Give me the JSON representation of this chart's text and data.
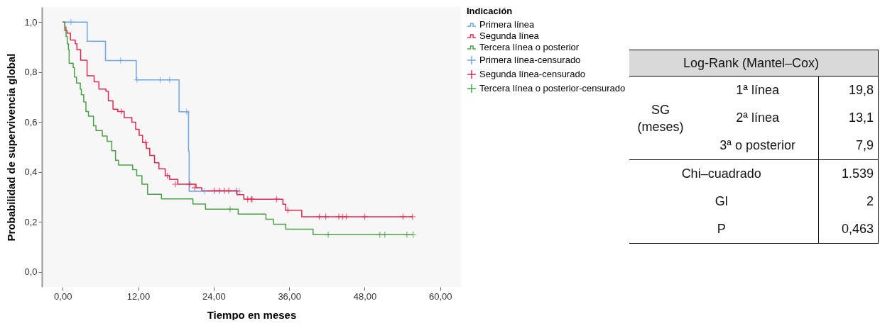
{
  "chart_data": [
    {
      "type": "step",
      "xlabel": "Tiempo en meses",
      "ylabel": "Probabilidad de supervivencia global",
      "legend_title": "Indicación",
      "legend": "top right",
      "xlim": [
        -3.3,
        63.3
      ],
      "ylim": [
        -0.06,
        1.06
      ],
      "xticks": [
        {
          "value": 0,
          "label": "0,00"
        },
        {
          "value": 12,
          "label": "12,00"
        },
        {
          "value": 24,
          "label": "24,00"
        },
        {
          "value": 36,
          "label": "36,00"
        },
        {
          "value": 48,
          "label": "48,00"
        },
        {
          "value": 60,
          "label": "60,00"
        }
      ],
      "yticks": [
        {
          "value": 0,
          "label": "0,0"
        },
        {
          "value": 0.2,
          "label": "0,2"
        },
        {
          "value": 0.4,
          "label": "0,4"
        },
        {
          "value": 0.6,
          "label": "0,6"
        },
        {
          "value": 0.8,
          "label": "0,8"
        },
        {
          "value": 1,
          "label": "1,0"
        }
      ],
      "series": [
        {
          "name": "Primera línea",
          "type": "step",
          "color": "#6ea6e8",
          "x": [
            0,
            3.9,
            6.8,
            11.7,
            18.5,
            20.0,
            20.1,
            28.1
          ],
          "values": [
            1,
            0.923,
            0.846,
            0.769,
            0.641,
            0.483,
            0.323,
            0.323
          ]
        },
        {
          "name": "Segunda línea",
          "type": "step",
          "color": "#e3284f",
          "x": [
            0,
            0.35,
            0.7,
            1.24,
            2.0,
            2.26,
            2.86,
            3.88,
            5.0,
            5.76,
            6.88,
            7.26,
            8.0,
            8.76,
            9.78,
            11.0,
            11.6,
            12.15,
            12.7,
            13.3,
            13.84,
            14.6,
            15.3,
            16.3,
            17.0,
            18.3,
            21.2,
            22.1,
            27.7,
            28.8,
            35.0,
            35.45,
            38.0,
            55.6
          ],
          "values": [
            1,
            0.966,
            0.956,
            0.928,
            0.913,
            0.89,
            0.847,
            0.785,
            0.761,
            0.732,
            0.723,
            0.685,
            0.651,
            0.642,
            0.618,
            0.599,
            0.571,
            0.547,
            0.518,
            0.494,
            0.466,
            0.437,
            0.413,
            0.385,
            0.37,
            0.351,
            0.337,
            0.325,
            0.309,
            0.291,
            0.271,
            0.247,
            0.221,
            0.221
          ]
        },
        {
          "name": "Tercera línea o posterior",
          "type": "step",
          "color": "#4aa047",
          "x": [
            0,
            0.35,
            0.54,
            0.73,
            0.92,
            1.03,
            1.67,
            1.86,
            2.2,
            2.8,
            2.97,
            3.35,
            3.7,
            4.1,
            4.9,
            5.3,
            6.3,
            7.07,
            7.8,
            8.4,
            8.87,
            11.12,
            11.76,
            12.6,
            13.5,
            15.7,
            20.7,
            22.7,
            27.9,
            32.3,
            33.5,
            35.45,
            39.8,
            55.7
          ],
          "values": [
            1,
            0.98,
            0.942,
            0.913,
            0.89,
            0.835,
            0.818,
            0.78,
            0.756,
            0.732,
            0.709,
            0.68,
            0.642,
            0.623,
            0.585,
            0.566,
            0.544,
            0.523,
            0.485,
            0.447,
            0.428,
            0.409,
            0.385,
            0.351,
            0.311,
            0.292,
            0.272,
            0.251,
            0.231,
            0.211,
            0.191,
            0.171,
            0.149,
            0.149
          ]
        },
        {
          "name": "Primera línea-censurado",
          "type": "scatter",
          "marker": "cross",
          "color": "#6ea6e8",
          "x": [
            1.3,
            9.2,
            11.8,
            15.5,
            17.0,
            19.7,
            22.5,
            28.1
          ],
          "values": [
            1,
            0.846,
            0.769,
            0.769,
            0.769,
            0.641,
            0.323,
            0.323
          ]
        },
        {
          "name": "Segunda línea-censurado",
          "type": "scatter",
          "marker": "cross",
          "color": "#e3284f",
          "x": [
            9.33,
            13.2,
            16.65,
            17.9,
            20.2,
            21.0,
            24.1,
            24.9,
            25.7,
            26.4,
            27.6,
            29.4,
            29.95,
            30.1,
            34.0,
            35.8,
            40.8,
            41.8,
            43.9,
            44.5,
            45.1,
            48.0,
            54.1,
            55.6
          ],
          "values": [
            0.642,
            0.518,
            0.385,
            0.351,
            0.351,
            0.337,
            0.325,
            0.325,
            0.325,
            0.325,
            0.325,
            0.291,
            0.291,
            0.291,
            0.291,
            0.247,
            0.221,
            0.221,
            0.221,
            0.221,
            0.221,
            0.221,
            0.221,
            0.221
          ]
        },
        {
          "name": "Tercera línea o posterior-censurado",
          "type": "scatter",
          "marker": "cross",
          "color": "#4aa047",
          "x": [
            26.6,
            42.2,
            50.4,
            51.2,
            54.7,
            55.7
          ],
          "values": [
            0.251,
            0.149,
            0.149,
            0.149,
            0.149,
            0.149
          ]
        }
      ]
    },
    {
      "type": "other",
      "title": "Log-Rank (Mantel–Cox)",
      "annotations": [
        "SG (meses)",
        "1ª línea",
        "19,8",
        "2ª línea",
        "13,1",
        "3ª o posterior",
        "7,9",
        "Chi–cuadrado",
        "1.539",
        "Gl",
        "2",
        "P",
        "0,463"
      ]
    }
  ]
}
